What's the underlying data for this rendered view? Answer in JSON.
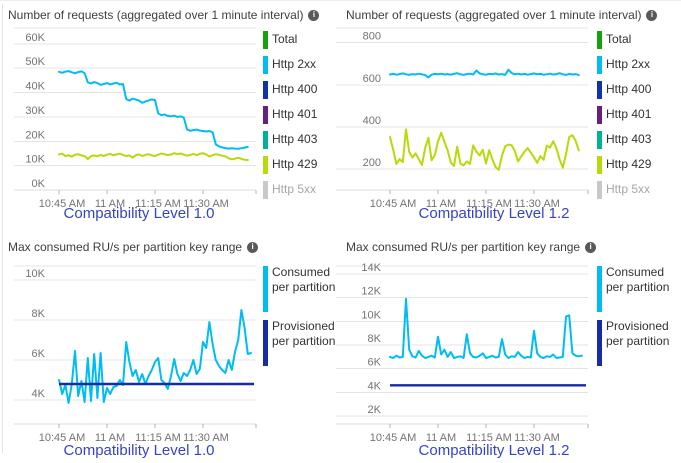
{
  "colors": {
    "accent_caption": "#3644c4",
    "grid": "#e4e4e4",
    "axis_tick": "#b3b3b3",
    "label_gray": "#737373",
    "dim_text": "#a6a6a6"
  },
  "icons": {
    "info": "i"
  },
  "chart_data": [
    {
      "id": "top-left",
      "type": "line",
      "title": "Number of requests (aggregated over 1 minute interval)",
      "caption": "Compatibility Level 1.0",
      "xticks": [
        "10:45 AM",
        "11 AM",
        "11:15 AM",
        "11:30 AM"
      ],
      "yticks": [
        {
          "v": 0,
          "t": "0K"
        },
        {
          "v": 10000,
          "t": "10K"
        },
        {
          "v": 20000,
          "t": "20K"
        },
        {
          "v": 30000,
          "t": "30K"
        },
        {
          "v": 40000,
          "t": "40K"
        },
        {
          "v": 50000,
          "t": "50K"
        },
        {
          "v": 60000,
          "t": "60K"
        }
      ],
      "ylim": [
        0,
        66500
      ],
      "grid": true,
      "legend_position": "right",
      "legend": [
        {
          "label": "Total",
          "color": "#13a10e"
        },
        {
          "label": "Http 2xx",
          "color": "#00bcf2"
        },
        {
          "label": "Http 400",
          "color": "#1232a8"
        },
        {
          "label": "Http 401",
          "color": "#68217a"
        },
        {
          "label": "Http 403",
          "color": "#00b294"
        },
        {
          "label": "Http 429",
          "color": "#bad80a"
        },
        {
          "label": "Http 5xx",
          "color": "#c8c8c8",
          "dim": true
        }
      ],
      "series": [
        {
          "name": "Http 2xx",
          "color": "#00bcf2",
          "values": [
            48500,
            48100,
            48600,
            48800,
            48300,
            47900,
            48400,
            48700,
            48000,
            44200,
            43700,
            44300,
            43900,
            43200,
            43500,
            43900,
            43300,
            43700,
            44000,
            43300,
            43500,
            37300,
            36700,
            37500,
            37100,
            36700,
            35800,
            36300,
            36800,
            37200,
            36900,
            31500,
            30700,
            31000,
            30400,
            30200,
            30500,
            30000,
            30200,
            29700,
            24900,
            24300,
            24600,
            24800,
            24400,
            24200,
            24000,
            24200,
            23700,
            18700,
            17900,
            17500,
            17200,
            17000,
            17100,
            17000,
            16900,
            17100,
            17400,
            17700
          ]
        },
        {
          "name": "Http 429",
          "color": "#bad80a",
          "values": [
            14600,
            14900,
            13900,
            14300,
            13700,
            14500,
            14700,
            14200,
            13900,
            12700,
            13900,
            14200,
            13800,
            14400,
            14000,
            14500,
            14800,
            14300,
            14600,
            14900,
            14400,
            13900,
            14200,
            13300,
            14300,
            14600,
            14000,
            14400,
            14700,
            14200,
            13900,
            14500,
            15000,
            14700,
            14300,
            14600,
            15100,
            14700,
            15000,
            14500,
            14100,
            14400,
            14800,
            14300,
            14900,
            15100,
            14600,
            13700,
            14300,
            14700,
            14400,
            14100,
            13800,
            13000,
            12600,
            12900,
            13200,
            12800,
            12400,
            12300
          ]
        }
      ]
    },
    {
      "id": "top-right",
      "type": "line",
      "title": "Number of requests (aggregated over 1 minute interval)",
      "caption": "Compatibility Level 1.2",
      "xticks": [
        "10:45 AM",
        "11 AM",
        "11:15 AM",
        "11:30 AM"
      ],
      "yticks": [
        {
          "v": 200,
          "t": "200"
        },
        {
          "v": 400,
          "t": "400"
        },
        {
          "v": 600,
          "t": "600"
        },
        {
          "v": 800,
          "t": "800"
        }
      ],
      "ylim": [
        100,
        870
      ],
      "grid": true,
      "legend_position": "right",
      "legend": [
        {
          "label": "Total",
          "color": "#13a10e"
        },
        {
          "label": "Http 2xx",
          "color": "#00bcf2"
        },
        {
          "label": "Http 400",
          "color": "#1232a8"
        },
        {
          "label": "Http 401",
          "color": "#68217a"
        },
        {
          "label": "Http 403",
          "color": "#00b294"
        },
        {
          "label": "Http 429",
          "color": "#bad80a"
        },
        {
          "label": "Http 5xx",
          "color": "#c8c8c8",
          "dim": true
        }
      ],
      "series": [
        {
          "name": "Http 2xx",
          "color": "#00bcf2",
          "values": [
            649,
            652,
            648,
            651,
            654,
            650,
            647,
            651,
            649,
            653,
            650,
            646,
            635,
            648,
            652,
            650,
            653,
            649,
            651,
            648,
            652,
            655,
            650,
            647,
            651,
            653,
            649,
            668,
            654,
            650,
            648,
            652,
            650,
            654,
            649,
            651,
            647,
            672,
            656,
            650,
            653,
            649,
            652,
            648,
            651,
            654,
            650,
            652,
            648,
            650,
            653,
            649,
            651,
            655,
            650,
            647,
            652,
            649,
            651,
            646
          ]
        },
        {
          "name": "Http 429",
          "color": "#bad80a",
          "values": [
            352,
            291,
            224,
            247,
            232,
            388,
            281,
            254,
            274,
            246,
            219,
            301,
            348,
            241,
            266,
            331,
            372,
            329,
            288,
            231,
            214,
            306,
            226,
            217,
            236,
            224,
            312,
            282,
            264,
            291,
            226,
            289,
            246,
            209,
            196,
            264,
            307,
            316,
            313,
            286,
            236,
            259,
            281,
            299,
            278,
            256,
            229,
            261,
            243,
            311,
            301,
            332,
            298,
            246,
            206,
            271,
            352,
            361,
            334,
            288
          ]
        }
      ]
    },
    {
      "id": "bottom-left",
      "type": "line",
      "title": "Max consumed RU/s per partition key range",
      "caption": "Compatibility Level 1.0",
      "xticks": [
        "10:45 AM",
        "11 AM",
        "11:15 AM",
        "11:30 AM"
      ],
      "yticks": [
        {
          "v": 4000,
          "t": "4K"
        },
        {
          "v": 6000,
          "t": "6K"
        },
        {
          "v": 8000,
          "t": "8K"
        },
        {
          "v": 10000,
          "t": "10K"
        }
      ],
      "ylim": [
        2800,
        10700
      ],
      "grid": true,
      "legend_position": "right",
      "legend": [
        {
          "label": "Consumed per partition",
          "color": "#00bcf2"
        },
        {
          "label": "Provisioned per partition",
          "color": "#152ba8"
        }
      ],
      "series": [
        {
          "name": "Consumed per partition",
          "color": "#00bcf2",
          "values": [
            5000,
            4300,
            4750,
            3850,
            4800,
            6450,
            4200,
            4950,
            3900,
            6100,
            3950,
            6300,
            4100,
            6350,
            3900,
            4600,
            4300,
            4650,
            4700,
            5000,
            4750,
            6900,
            5900,
            5200,
            5500,
            4900,
            5300,
            4800,
            5200,
            5500,
            5900,
            6100,
            5000,
            4850,
            4550,
            5200,
            6050,
            5300,
            4950,
            5350,
            5200,
            5500,
            6000,
            5300,
            5550,
            6900,
            6600,
            7900,
            6800,
            6000,
            5700,
            5500,
            5350,
            6000,
            5500,
            6400,
            7000,
            8500,
            7600,
            6300,
            6350
          ]
        },
        {
          "name": "Provisioned per partition",
          "color": "#152ba8",
          "const": 4800
        }
      ]
    },
    {
      "id": "bottom-right",
      "type": "line",
      "title": "Max consumed RU/s per partition key range",
      "caption": "Compatibility Level 1.2",
      "xticks": [
        "10:45 AM",
        "11 AM",
        "11:15 AM",
        "11:30 AM"
      ],
      "yticks": [
        {
          "v": 2000,
          "t": "2K"
        },
        {
          "v": 4000,
          "t": "4K"
        },
        {
          "v": 6000,
          "t": "6K"
        },
        {
          "v": 8000,
          "t": "8K"
        },
        {
          "v": 10000,
          "t": "10K"
        },
        {
          "v": 12000,
          "t": "12K"
        },
        {
          "v": 14000,
          "t": "14K"
        }
      ],
      "ylim": [
        1340,
        14660
      ],
      "grid": true,
      "legend_position": "right",
      "legend": [
        {
          "label": "Consumed per partition",
          "color": "#00bcf2"
        },
        {
          "label": "Provisioned per partition",
          "color": "#152ba8"
        }
      ],
      "series": [
        {
          "name": "Consumed per partition",
          "color": "#00bcf2",
          "values": [
            7000,
            6900,
            7100,
            6950,
            7000,
            11900,
            7600,
            7050,
            6950,
            7500,
            7100,
            6900,
            7000,
            7100,
            6950,
            8700,
            7200,
            7600,
            7000,
            7400,
            6900,
            7000,
            7050,
            6900,
            8900,
            7300,
            7000,
            6950,
            7100,
            7300,
            6900,
            7000,
            7100,
            6950,
            7000,
            8500,
            7200,
            6900,
            7050,
            7000,
            7400,
            7100,
            6900,
            7000,
            6950,
            9200,
            7300,
            7000,
            6900,
            7050,
            7000,
            7200,
            6900,
            6950,
            7000,
            10400,
            10500,
            7300,
            7100,
            7050,
            7100
          ]
        },
        {
          "name": "Provisioned per partition",
          "color": "#152ba8",
          "const": 4600
        }
      ]
    }
  ]
}
